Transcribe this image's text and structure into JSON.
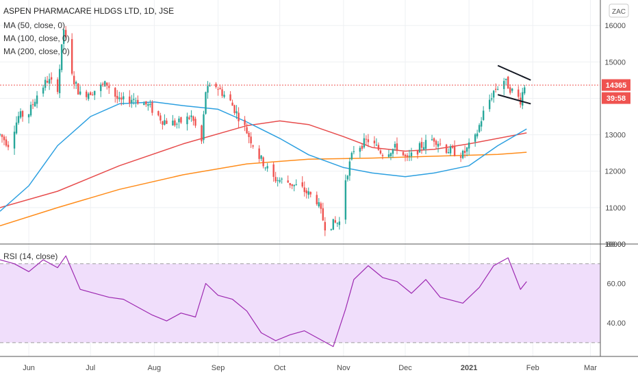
{
  "chart_data": [
    {
      "type": "candlestick",
      "title": "ASPEN PHARMACARE HLDGS LTD, 1D, JSE",
      "indicators": [
        "MA (50, close, 0)",
        "MA (100, close, 0)",
        "MA (200, close, 0)"
      ],
      "unit": "ZAC",
      "y_ticks": [
        "16000",
        "15000",
        "14000",
        "13000",
        "12000",
        "11000",
        "10000"
      ],
      "ylim": [
        10000,
        16700
      ],
      "x_ticks": [
        "Jun",
        "Jul",
        "Aug",
        "Sep",
        "Oct",
        "Nov",
        "Dec",
        "2021",
        "Feb",
        "Mar"
      ],
      "last_price": "14365",
      "countdown": "39:58",
      "price_path": [
        [
          "2020-05-18",
          13000
        ],
        [
          "2020-05-22",
          12750
        ],
        [
          "2020-05-27",
          13500
        ],
        [
          "2020-06-01",
          13600
        ],
        [
          "2020-06-05",
          14100
        ],
        [
          "2020-06-10",
          14500
        ],
        [
          "2020-06-15",
          14300
        ],
        [
          "2020-06-18",
          15900
        ],
        [
          "2020-06-22",
          14600
        ],
        [
          "2020-06-26",
          14100
        ],
        [
          "2020-07-02",
          14200
        ],
        [
          "2020-07-09",
          14400
        ],
        [
          "2020-07-15",
          13900
        ],
        [
          "2020-07-22",
          14000
        ],
        [
          "2020-07-29",
          13800
        ],
        [
          "2020-08-05",
          13400
        ],
        [
          "2020-08-12",
          13300
        ],
        [
          "2020-08-19",
          13500
        ],
        [
          "2020-08-24",
          12800
        ],
        [
          "2020-08-26",
          14200
        ],
        [
          "2020-08-31",
          14350
        ],
        [
          "2020-09-07",
          13900
        ],
        [
          "2020-09-14",
          13200
        ],
        [
          "2020-09-21",
          12400
        ],
        [
          "2020-09-28",
          11800
        ],
        [
          "2020-10-05",
          11700
        ],
        [
          "2020-10-12",
          11500
        ],
        [
          "2020-10-19",
          11200
        ],
        [
          "2020-10-23",
          10500
        ],
        [
          "2020-10-30",
          10600
        ],
        [
          "2020-11-02",
          11800
        ],
        [
          "2020-11-06",
          12600
        ],
        [
          "2020-11-13",
          12850
        ],
        [
          "2020-11-20",
          12500
        ],
        [
          "2020-11-27",
          12650
        ],
        [
          "2020-12-02",
          12300
        ],
        [
          "2020-12-09",
          12700
        ],
        [
          "2020-12-15",
          12900
        ],
        [
          "2020-12-21",
          12600
        ],
        [
          "2020-12-29",
          12450
        ],
        [
          "2021-01-04",
          12900
        ],
        [
          "2021-01-08",
          13600
        ],
        [
          "2021-01-13",
          14200
        ],
        [
          "2021-01-18",
          14500
        ],
        [
          "2021-01-22",
          14200
        ],
        [
          "2021-01-26",
          13950
        ],
        [
          "2021-01-28",
          14365
        ]
      ],
      "ma_50": [
        [
          "2020-05-18",
          10900
        ],
        [
          "2020-06-01",
          11600
        ],
        [
          "2020-06-15",
          12700
        ],
        [
          "2020-07-01",
          13500
        ],
        [
          "2020-07-15",
          13850
        ],
        [
          "2020-08-01",
          13900
        ],
        [
          "2020-08-15",
          13800
        ],
        [
          "2020-09-01",
          13700
        ],
        [
          "2020-09-15",
          13350
        ],
        [
          "2020-10-01",
          12900
        ],
        [
          "2020-10-15",
          12450
        ],
        [
          "2020-11-01",
          12100
        ],
        [
          "2020-11-15",
          11950
        ],
        [
          "2020-12-01",
          11850
        ],
        [
          "2020-12-15",
          11950
        ],
        [
          "2021-01-01",
          12150
        ],
        [
          "2021-01-15",
          12700
        ],
        [
          "2021-01-29",
          13160
        ]
      ],
      "ma_100": [
        [
          "2020-05-18",
          11000
        ],
        [
          "2020-06-15",
          11450
        ],
        [
          "2020-07-15",
          12150
        ],
        [
          "2020-08-15",
          12750
        ],
        [
          "2020-09-15",
          13250
        ],
        [
          "2020-10-01",
          13380
        ],
        [
          "2020-10-15",
          13280
        ],
        [
          "2020-11-01",
          12950
        ],
        [
          "2020-11-15",
          12650
        ],
        [
          "2020-12-01",
          12550
        ],
        [
          "2020-12-15",
          12600
        ],
        [
          "2021-01-01",
          12750
        ],
        [
          "2021-01-29",
          13050
        ]
      ],
      "ma_200": [
        [
          "2020-05-18",
          10500
        ],
        [
          "2020-06-15",
          11000
        ],
        [
          "2020-07-15",
          11500
        ],
        [
          "2020-08-15",
          11900
        ],
        [
          "2020-09-15",
          12200
        ],
        [
          "2020-10-15",
          12330
        ],
        [
          "2020-11-15",
          12360
        ],
        [
          "2020-12-15",
          12410
        ],
        [
          "2021-01-15",
          12460
        ],
        [
          "2021-01-29",
          12520
        ]
      ],
      "channel_upper": [
        [
          "2021-01-15",
          14900
        ],
        [
          "2021-01-31",
          14500
        ]
      ],
      "channel_lower": [
        [
          "2021-01-15",
          14100
        ],
        [
          "2021-01-31",
          13850
        ]
      ]
    },
    {
      "type": "line",
      "legend": "RSI (14, close)",
      "y_ticks": [
        "80.00",
        "60.00",
        "40.00"
      ],
      "ylim": [
        23,
        80
      ],
      "upper_band": 70,
      "lower_band": 30,
      "values": [
        [
          "2020-05-18",
          72
        ],
        [
          "2020-05-25",
          70
        ],
        [
          "2020-06-01",
          66
        ],
        [
          "2020-06-08",
          72
        ],
        [
          "2020-06-15",
          68
        ],
        [
          "2020-06-19",
          74
        ],
        [
          "2020-06-26",
          57
        ],
        [
          "2020-07-03",
          55
        ],
        [
          "2020-07-10",
          53
        ],
        [
          "2020-07-17",
          52
        ],
        [
          "2020-07-24",
          48
        ],
        [
          "2020-07-31",
          44
        ],
        [
          "2020-08-07",
          41
        ],
        [
          "2020-08-14",
          45
        ],
        [
          "2020-08-21",
          43
        ],
        [
          "2020-08-26",
          60
        ],
        [
          "2020-09-01",
          54
        ],
        [
          "2020-09-08",
          52
        ],
        [
          "2020-09-15",
          46
        ],
        [
          "2020-09-22",
          35
        ],
        [
          "2020-09-29",
          31
        ],
        [
          "2020-10-06",
          34
        ],
        [
          "2020-10-13",
          36
        ],
        [
          "2020-10-20",
          32
        ],
        [
          "2020-10-27",
          28
        ],
        [
          "2020-11-02",
          47
        ],
        [
          "2020-11-06",
          62
        ],
        [
          "2020-11-13",
          69
        ],
        [
          "2020-11-20",
          63
        ],
        [
          "2020-11-27",
          61
        ],
        [
          "2020-12-04",
          55
        ],
        [
          "2020-12-11",
          62
        ],
        [
          "2020-12-18",
          53
        ],
        [
          "2020-12-29",
          50
        ],
        [
          "2021-01-06",
          58
        ],
        [
          "2021-01-13",
          69
        ],
        [
          "2021-01-20",
          73
        ],
        [
          "2021-01-26",
          57
        ],
        [
          "2021-01-29",
          61
        ]
      ]
    }
  ]
}
